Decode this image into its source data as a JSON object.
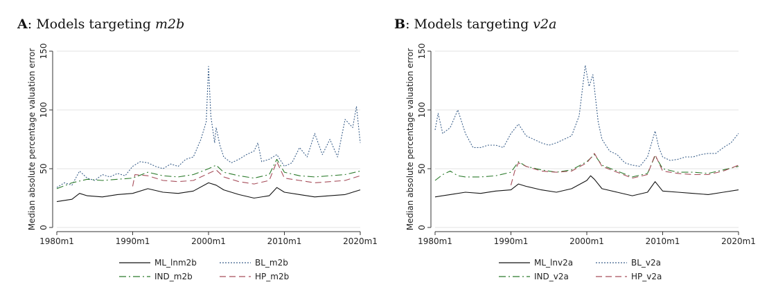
{
  "panels": [
    {
      "letter": "A",
      "prefix": ": Models targeting ",
      "target": "m2b"
    },
    {
      "letter": "B",
      "prefix": ": Models targeting ",
      "target": "v2a"
    }
  ],
  "chart_data": [
    {
      "type": "line",
      "title": "A: Models targeting m2b",
      "xlabel": "",
      "ylabel": "Median absolute percentage valuation error",
      "xlim": [
        1980,
        2020
      ],
      "ylim": [
        0,
        150
      ],
      "xticks": [
        1980,
        1990,
        2000,
        2010,
        2020
      ],
      "xtick_labels": [
        "1980m1",
        "1990m1",
        "2000m1",
        "2010m1",
        "2020m1"
      ],
      "yticks": [
        0,
        50,
        100,
        150
      ],
      "ytick_labels": [
        "0",
        "50",
        "100",
        "150"
      ],
      "grid": "horizontal",
      "legend": "bottom",
      "series": [
        {
          "name": "ML_lnm2b",
          "color": "#111111",
          "dash": "solid",
          "points": [
            [
              1980,
              22
            ],
            [
              1982,
              24
            ],
            [
              1983,
              29
            ],
            [
              1984,
              27
            ],
            [
              1986,
              26
            ],
            [
              1988,
              28
            ],
            [
              1990,
              29
            ],
            [
              1992,
              33
            ],
            [
              1994,
              30
            ],
            [
              1996,
              29
            ],
            [
              1998,
              31
            ],
            [
              2000,
              38
            ],
            [
              2001,
              36
            ],
            [
              2002,
              32
            ],
            [
              2004,
              28
            ],
            [
              2006,
              25
            ],
            [
              2008,
              27
            ],
            [
              2009,
              34
            ],
            [
              2010,
              30
            ],
            [
              2012,
              28
            ],
            [
              2014,
              26
            ],
            [
              2016,
              27
            ],
            [
              2018,
              28
            ],
            [
              2020,
              32
            ]
          ]
        },
        {
          "name": "BL_m2b",
          "color": "#3a5f8a",
          "dash": "dotted",
          "points": [
            [
              1980,
              34
            ],
            [
              1981,
              38
            ],
            [
              1982,
              36
            ],
            [
              1983,
              48
            ],
            [
              1984,
              42
            ],
            [
              1985,
              40
            ],
            [
              1986,
              45
            ],
            [
              1987,
              43
            ],
            [
              1988,
              46
            ],
            [
              1989,
              44
            ],
            [
              1990,
              52
            ],
            [
              1991,
              56
            ],
            [
              1992,
              55
            ],
            [
              1993,
              52
            ],
            [
              1994,
              50
            ],
            [
              1995,
              54
            ],
            [
              1996,
              52
            ],
            [
              1997,
              58
            ],
            [
              1998,
              60
            ],
            [
              1999,
              75
            ],
            [
              1999.7,
              90
            ],
            [
              2000,
              137
            ],
            [
              2000.3,
              95
            ],
            [
              2000.8,
              72
            ],
            [
              2001,
              85
            ],
            [
              2001.5,
              70
            ],
            [
              2002,
              60
            ],
            [
              2003,
              55
            ],
            [
              2004,
              58
            ],
            [
              2005,
              62
            ],
            [
              2006,
              65
            ],
            [
              2006.5,
              72
            ],
            [
              2007,
              56
            ],
            [
              2008,
              58
            ],
            [
              2009,
              62
            ],
            [
              2010,
              52
            ],
            [
              2011,
              55
            ],
            [
              2012,
              68
            ],
            [
              2013,
              60
            ],
            [
              2014,
              80
            ],
            [
              2015,
              62
            ],
            [
              2016,
              75
            ],
            [
              2017,
              60
            ],
            [
              2018,
              92
            ],
            [
              2019,
              85
            ],
            [
              2019.5,
              103
            ],
            [
              2020,
              72
            ]
          ]
        },
        {
          "name": "IND_m2b",
          "color": "#2a7a2a",
          "dash": "dashdot",
          "points": [
            [
              1980,
              33
            ],
            [
              1982,
              38
            ],
            [
              1984,
              41
            ],
            [
              1986,
              40
            ],
            [
              1988,
              41
            ],
            [
              1990,
              42
            ],
            [
              1992,
              47
            ],
            [
              1994,
              44
            ],
            [
              1996,
              43
            ],
            [
              1998,
              45
            ],
            [
              2000,
              50
            ],
            [
              2001,
              53
            ],
            [
              2002,
              47
            ],
            [
              2004,
              44
            ],
            [
              2006,
              42
            ],
            [
              2008,
              45
            ],
            [
              2009,
              58
            ],
            [
              2010,
              47
            ],
            [
              2012,
              44
            ],
            [
              2014,
              43
            ],
            [
              2016,
              44
            ],
            [
              2018,
              45
            ],
            [
              2020,
              48
            ]
          ]
        },
        {
          "name": "HP_m2b",
          "color": "#a64d5a",
          "dash": "dashed",
          "points": [
            [
              1990,
              35
            ],
            [
              1990.3,
              45
            ],
            [
              1992,
              44
            ],
            [
              1994,
              40
            ],
            [
              1996,
              39
            ],
            [
              1998,
              40
            ],
            [
              2000,
              46
            ],
            [
              2001,
              49
            ],
            [
              2002,
              43
            ],
            [
              2004,
              39
            ],
            [
              2006,
              37
            ],
            [
              2008,
              40
            ],
            [
              2009,
              56
            ],
            [
              2010,
              42
            ],
            [
              2012,
              40
            ],
            [
              2014,
              38
            ],
            [
              2016,
              39
            ],
            [
              2018,
              40
            ],
            [
              2020,
              44
            ]
          ]
        }
      ]
    },
    {
      "type": "line",
      "title": "B: Models targeting v2a",
      "xlabel": "",
      "ylabel": "Median absolute percentage valuation error",
      "xlim": [
        1980,
        2020
      ],
      "ylim": [
        0,
        150
      ],
      "xticks": [
        1980,
        1990,
        2000,
        2010,
        2020
      ],
      "xtick_labels": [
        "1980m1",
        "1990m1",
        "2000m1",
        "2010m1",
        "2020m1"
      ],
      "yticks": [
        0,
        50,
        100,
        150
      ],
      "ytick_labels": [
        "0",
        "50",
        "100",
        "150"
      ],
      "grid": "horizontal",
      "legend": "bottom",
      "series": [
        {
          "name": "ML_lnv2a",
          "color": "#111111",
          "dash": "solid",
          "points": [
            [
              1980,
              26
            ],
            [
              1982,
              28
            ],
            [
              1984,
              30
            ],
            [
              1986,
              29
            ],
            [
              1988,
              31
            ],
            [
              1990,
              32
            ],
            [
              1991,
              37
            ],
            [
              1992,
              35
            ],
            [
              1994,
              32
            ],
            [
              1996,
              30
            ],
            [
              1998,
              33
            ],
            [
              2000,
              40
            ],
            [
              2000.5,
              44
            ],
            [
              2001,
              41
            ],
            [
              2002,
              33
            ],
            [
              2004,
              30
            ],
            [
              2006,
              27
            ],
            [
              2008,
              30
            ],
            [
              2009,
              39
            ],
            [
              2010,
              31
            ],
            [
              2012,
              30
            ],
            [
              2014,
              29
            ],
            [
              2016,
              28
            ],
            [
              2018,
              30
            ],
            [
              2020,
              32
            ]
          ]
        },
        {
          "name": "BL_v2a",
          "color": "#3a5f8a",
          "dash": "dotted",
          "points": [
            [
              1980,
              83
            ],
            [
              1980.4,
              97
            ],
            [
              1981,
              80
            ],
            [
              1982,
              85
            ],
            [
              1983,
              100
            ],
            [
              1984,
              80
            ],
            [
              1985,
              68
            ],
            [
              1986,
              68
            ],
            [
              1987,
              70
            ],
            [
              1988,
              70
            ],
            [
              1989,
              68
            ],
            [
              1990,
              80
            ],
            [
              1991,
              88
            ],
            [
              1992,
              78
            ],
            [
              1993,
              75
            ],
            [
              1994,
              72
            ],
            [
              1995,
              70
            ],
            [
              1996,
              72
            ],
            [
              1997,
              75
            ],
            [
              1998,
              78
            ],
            [
              1999,
              95
            ],
            [
              1999.8,
              138
            ],
            [
              2000.3,
              120
            ],
            [
              2000.8,
              130
            ],
            [
              2001.5,
              90
            ],
            [
              2002,
              75
            ],
            [
              2003,
              65
            ],
            [
              2004,
              62
            ],
            [
              2005,
              55
            ],
            [
              2006,
              53
            ],
            [
              2007,
              52
            ],
            [
              2008,
              60
            ],
            [
              2009,
              82
            ],
            [
              2009.5,
              68
            ],
            [
              2010,
              60
            ],
            [
              2011,
              57
            ],
            [
              2012,
              58
            ],
            [
              2013,
              60
            ],
            [
              2014,
              60
            ],
            [
              2015,
              62
            ],
            [
              2016,
              63
            ],
            [
              2017,
              63
            ],
            [
              2018,
              68
            ],
            [
              2019,
              72
            ],
            [
              2020,
              80
            ]
          ]
        },
        {
          "name": "IND_v2a",
          "color": "#2a7a2a",
          "dash": "dashdot",
          "points": [
            [
              1980,
              40
            ],
            [
              1981,
              45
            ],
            [
              1982,
              48
            ],
            [
              1983,
              44
            ],
            [
              1984,
              43
            ],
            [
              1986,
              43
            ],
            [
              1988,
              44
            ],
            [
              1990,
              47
            ],
            [
              1991,
              56
            ],
            [
              1992,
              52
            ],
            [
              1994,
              49
            ],
            [
              1996,
              47
            ],
            [
              1998,
              49
            ],
            [
              2000,
              56
            ],
            [
              2001,
              62
            ],
            [
              2002,
              53
            ],
            [
              2004,
              48
            ],
            [
              2006,
              43
            ],
            [
              2008,
              46
            ],
            [
              2009,
              61
            ],
            [
              2010,
              50
            ],
            [
              2012,
              47
            ],
            [
              2014,
              47
            ],
            [
              2016,
              46
            ],
            [
              2018,
              49
            ],
            [
              2020,
              52
            ]
          ]
        },
        {
          "name": "HP_v2a",
          "color": "#a64d5a",
          "dash": "dashed",
          "points": [
            [
              1990,
              36
            ],
            [
              1990.5,
              48
            ],
            [
              1991,
              55
            ],
            [
              1992,
              52
            ],
            [
              1994,
              48
            ],
            [
              1996,
              47
            ],
            [
              1998,
              48
            ],
            [
              2000,
              55
            ],
            [
              2001,
              63
            ],
            [
              2002,
              52
            ],
            [
              2004,
              47
            ],
            [
              2006,
              42
            ],
            [
              2008,
              45
            ],
            [
              2009,
              62
            ],
            [
              2010,
              48
            ],
            [
              2012,
              46
            ],
            [
              2014,
              45
            ],
            [
              2016,
              45
            ],
            [
              2018,
              48
            ],
            [
              2020,
              53
            ]
          ]
        }
      ]
    }
  ]
}
